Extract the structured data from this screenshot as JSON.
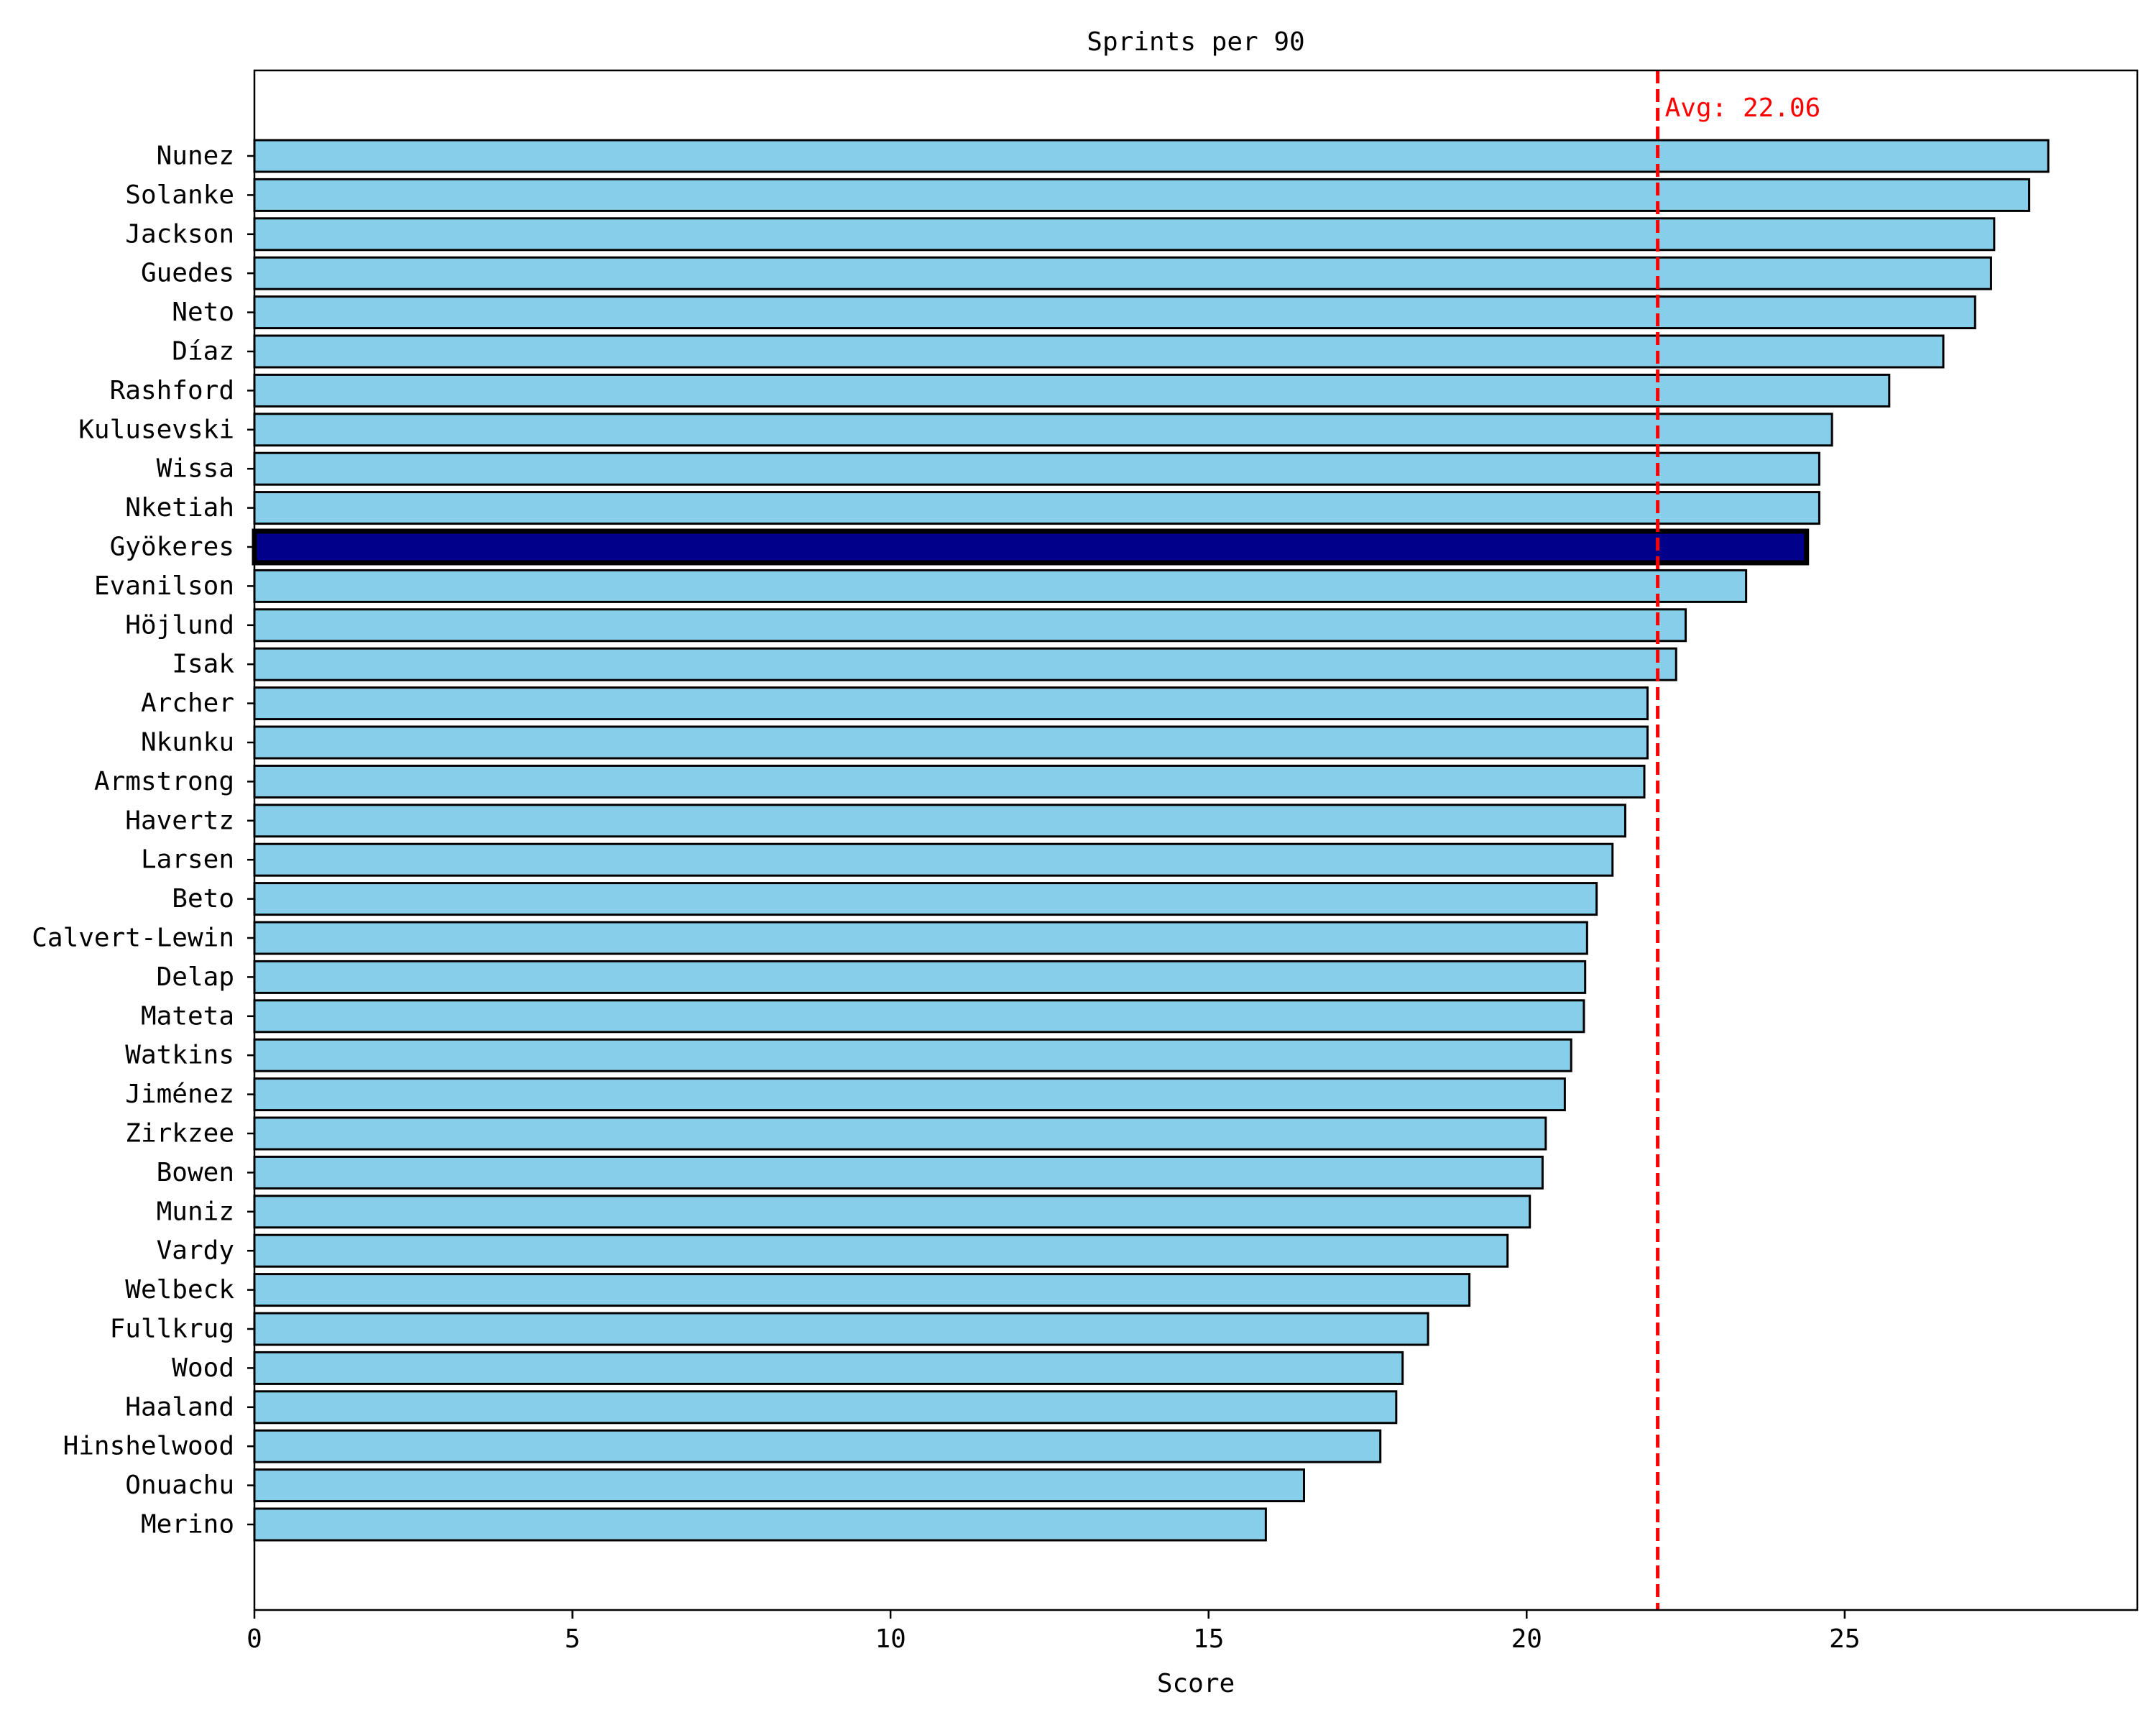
{
  "chart_data": {
    "type": "bar",
    "orientation": "horizontal",
    "title": "Sprints per 90",
    "xlabel": "Score",
    "ylabel": "",
    "xlim": [
      0,
      29.6
    ],
    "xticks": [
      0,
      5,
      10,
      15,
      20,
      25
    ],
    "grid": false,
    "categories": [
      "Nunez",
      "Solanke",
      "Jackson",
      "Guedes",
      "Neto",
      "Díaz",
      "Rashford",
      "Kulusevski",
      "Wissa",
      "Nketiah",
      "Gyökeres",
      "Evanilson",
      "Höjlund",
      "Isak",
      "Archer",
      "Nkunku",
      "Armstrong",
      "Havertz",
      "Larsen",
      "Beto",
      "Calvert-Lewin",
      "Delap",
      "Mateta",
      "Watkins",
      "Jiménez",
      "Zirkzee",
      "Bowen",
      "Muniz",
      "Vardy",
      "Welbeck",
      "Fullkrug",
      "Wood",
      "Haaland",
      "Hinshelwood",
      "Onuachu",
      "Merino"
    ],
    "values": [
      28.2,
      27.9,
      27.35,
      27.3,
      27.05,
      26.55,
      25.7,
      24.8,
      24.6,
      24.6,
      24.4,
      23.45,
      22.5,
      22.35,
      21.9,
      21.9,
      21.85,
      21.55,
      21.35,
      21.1,
      20.95,
      20.92,
      20.9,
      20.7,
      20.6,
      20.3,
      20.25,
      20.05,
      19.7,
      19.1,
      18.45,
      18.05,
      17.95,
      17.7,
      16.5,
      15.9
    ],
    "highlight": "Gyökeres",
    "bar_color": "#87ceeb",
    "highlight_color": "#00008b",
    "average": {
      "value": 22.06,
      "label": "Avg: 22.06",
      "color": "#ff0000"
    }
  }
}
